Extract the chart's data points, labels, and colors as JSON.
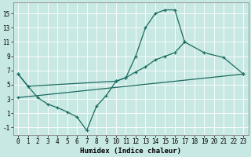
{
  "background_color": "#c8e8e4",
  "grid_color": "#ffffff",
  "line_color": "#1a6b60",
  "line_width": 0.9,
  "marker": "+",
  "marker_size": 3.5,
  "marker_edge_width": 0.9,
  "xlabel": "Humidex (Indice chaleur)",
  "xlabel_fontsize": 6.5,
  "xlabel_fontweight": "bold",
  "tick_fontsize": 5.5,
  "ylim": [
    -2.0,
    16.5
  ],
  "xlim": [
    -0.5,
    23.5
  ],
  "yticks": [
    -1,
    1,
    3,
    5,
    7,
    9,
    11,
    13,
    15
  ],
  "xticks": [
    0,
    1,
    2,
    3,
    4,
    5,
    6,
    7,
    8,
    9,
    10,
    11,
    12,
    13,
    14,
    15,
    16,
    17,
    18,
    19,
    20,
    21,
    22,
    23
  ],
  "curve1_x": [
    0,
    1,
    2,
    3,
    4,
    5,
    6,
    7,
    8,
    9,
    10,
    11,
    12,
    13,
    14,
    15,
    16,
    17
  ],
  "curve1_y": [
    6.5,
    4.8,
    3.2,
    2.3,
    1.8,
    1.2,
    0.5,
    -1.4,
    2.0,
    3.5,
    5.5,
    6.0,
    9.0,
    13.0,
    15.0,
    15.5,
    15.5,
    11.0
  ],
  "curve2_x": [
    0,
    1,
    10,
    11,
    12,
    13,
    14,
    15,
    16,
    17,
    19,
    21,
    23
  ],
  "curve2_y": [
    6.5,
    4.8,
    5.5,
    6.0,
    6.8,
    7.5,
    8.5,
    9.0,
    9.5,
    11.0,
    9.5,
    8.8,
    6.5
  ],
  "curve3_x": [
    0,
    23
  ],
  "curve3_y": [
    3.2,
    6.5
  ]
}
